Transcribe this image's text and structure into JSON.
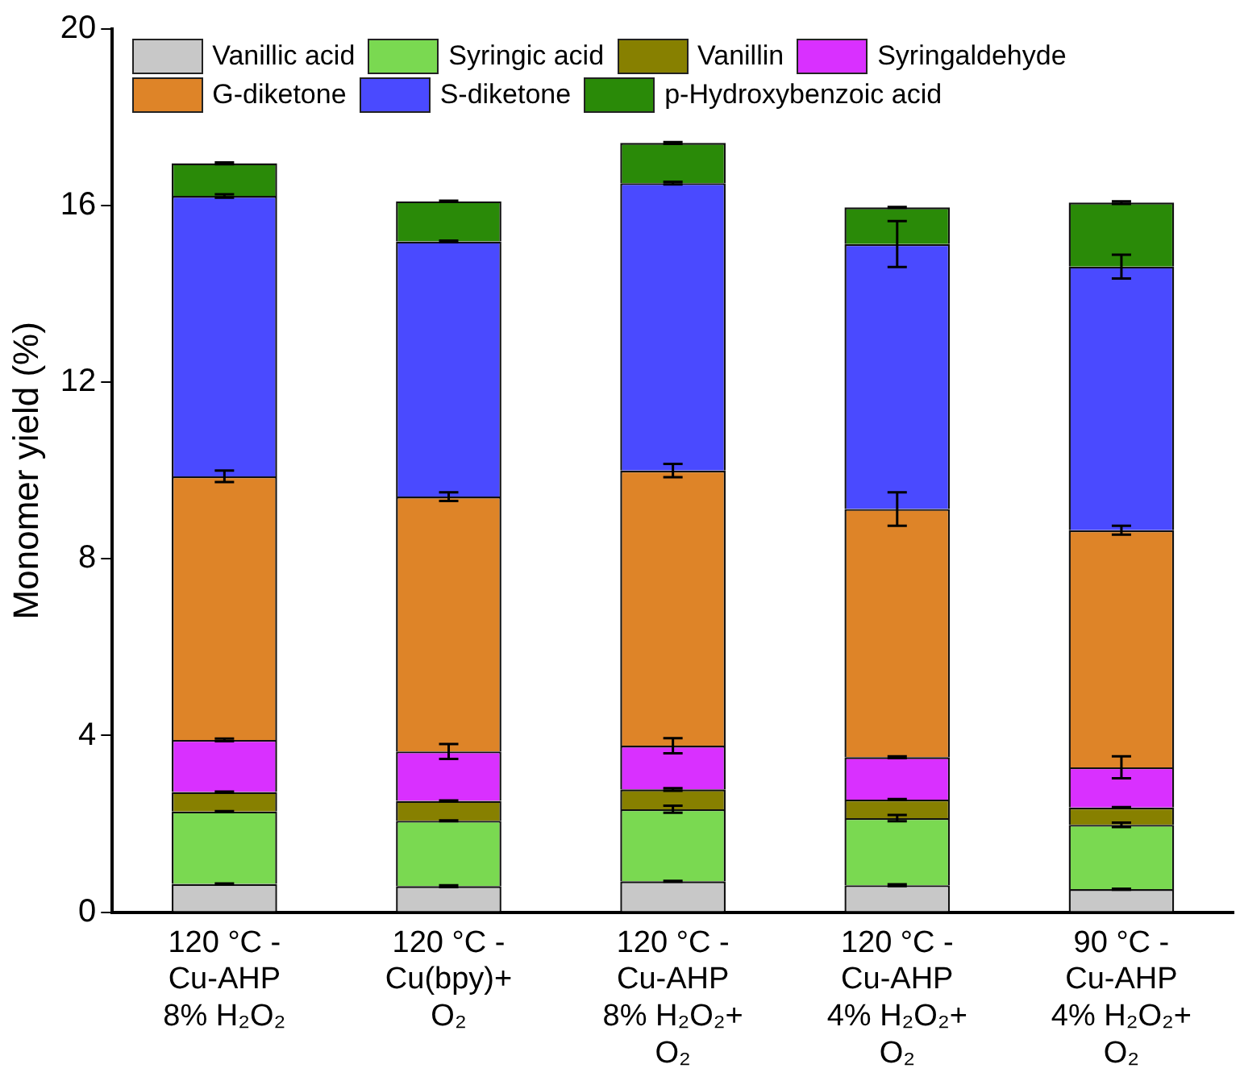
{
  "chart_data": {
    "type": "bar",
    "stacked": true,
    "ylabel": "Monomer yield (%)",
    "categories": [
      "120 °C -\nCu-AHP\n8% H₂O₂",
      "120 °C -\nCu(bpy)+\nO₂",
      "120 °C -\nCu-AHP\n8% H₂O₂+\nO₂",
      "120 °C -\nCu-AHP\n4% H₂O₂+\nO₂",
      "90 °C -\nCu-AHP\n4% H₂O₂+\nO₂"
    ],
    "series": [
      {
        "name": "Vanillic acid",
        "color": "#c8c8c8",
        "values": [
          0.64,
          0.59,
          0.7,
          0.61,
          0.52
        ],
        "errors": [
          0.01,
          0.02,
          0.01,
          0.02,
          0.01
        ]
      },
      {
        "name": "Syringic acid",
        "color": "#7ad951",
        "values": [
          1.64,
          1.48,
          1.63,
          1.52,
          1.46
        ],
        "errors": [
          0.01,
          0.01,
          0.08,
          0.07,
          0.05
        ]
      },
      {
        "name": "Vanillin",
        "color": "#878000",
        "values": [
          0.44,
          0.45,
          0.45,
          0.42,
          0.39
        ],
        "errors": [
          0.01,
          0.01,
          0.03,
          0.01,
          0.01
        ]
      },
      {
        "name": "Syringaldehyde",
        "color": "#d930ff",
        "values": [
          1.18,
          1.12,
          0.99,
          0.96,
          0.91
        ],
        "errors": [
          0.03,
          0.17,
          0.17,
          0.02,
          0.25
        ]
      },
      {
        "name": "G-diketone",
        "color": "#de8428",
        "values": [
          5.97,
          5.77,
          6.23,
          5.62,
          5.37
        ],
        "errors": [
          0.13,
          0.1,
          0.15,
          0.38,
          0.1
        ]
      },
      {
        "name": "S-diketone",
        "color": "#4a4aff",
        "values": [
          6.35,
          5.78,
          6.51,
          6.0,
          5.97
        ],
        "errors": [
          0.04,
          0.02,
          0.03,
          0.52,
          0.27
        ]
      },
      {
        "name": "p-Hydroxybenzoic acid",
        "color": "#2a8a08",
        "values": [
          0.74,
          0.91,
          0.91,
          0.83,
          1.45
        ],
        "errors": [
          0.02,
          0.01,
          0.02,
          0.01,
          0.03
        ]
      }
    ],
    "ylim": [
      0,
      20
    ],
    "yticks": [
      0,
      4,
      8,
      12,
      16,
      20
    ],
    "grid": false,
    "legend": "top"
  }
}
